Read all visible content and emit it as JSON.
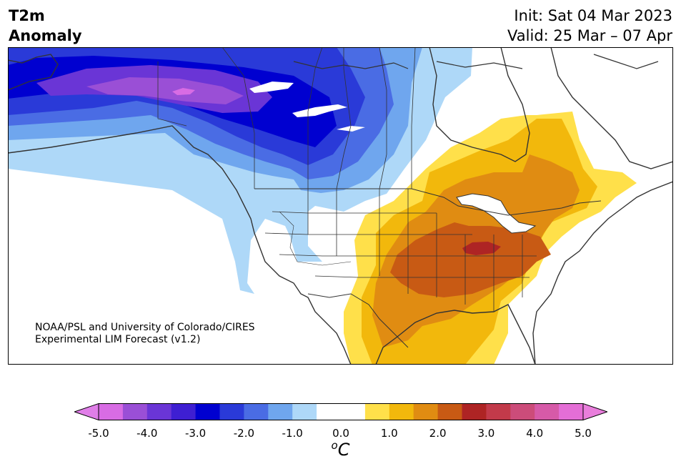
{
  "title": {
    "line1": "T2m",
    "line2": "Anomaly"
  },
  "init": {
    "label": "Init: Sat 04 Mar 2023"
  },
  "valid": {
    "label": "Valid: 25 Mar – 07 Apr"
  },
  "credit": {
    "line1": "NOAA/PSL and University of Colorado/CIRES",
    "line2": "Experimental LIM Forecast (v1.2)"
  },
  "colorbar": {
    "unit_sup": "o",
    "unit_main": "C",
    "ticks": [
      "-5.0",
      "-4.0",
      "-3.0",
      "-2.0",
      "-1.0",
      "0.0",
      "1.0",
      "2.0",
      "3.0",
      "4.0",
      "5.0"
    ],
    "colors": [
      "#d86ce4",
      "#9a4fd6",
      "#6a35d6",
      "#3e1fd2",
      "#0000d0",
      "#2a3ad8",
      "#4a6ce4",
      "#6fa6ee",
      "#aed8f8",
      "#ffffff",
      "#ffffff",
      "#ffe04a",
      "#f2b80c",
      "#e08c12",
      "#c85a14",
      "#ae2424",
      "#c23a4a",
      "#cc4c7a",
      "#d65aa8",
      "#e46ed6"
    ],
    "under_color": "#e07ee8",
    "over_color": "#e97edc"
  },
  "map": {
    "region": "North America",
    "palette": {
      "ocean": "#ffffff",
      "neutral": "#ffffff",
      "cold1": "#aed8f8",
      "cold2": "#6fa6ee",
      "cold3": "#4a6ce4",
      "cold4": "#2a3ad8",
      "cold5": "#0000d0",
      "cold6": "#6a35d6",
      "cold7": "#9a4fd6",
      "cold8": "#d86ce4",
      "warm1": "#ffe04a",
      "warm2": "#f2b80c",
      "warm3": "#e08c12",
      "warm4": "#c85a14",
      "warm5": "#ae2424"
    }
  }
}
